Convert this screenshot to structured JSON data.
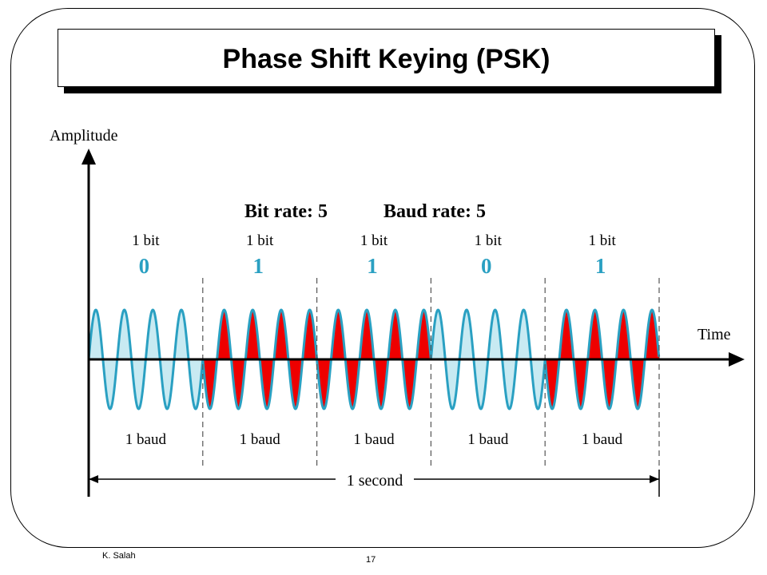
{
  "slide": {
    "title": "Phase Shift Keying (PSK)",
    "author": "K. Salah",
    "page_number": "17"
  },
  "diagram": {
    "y_axis_label": "Amplitude",
    "x_axis_label": "Time",
    "bit_rate_text": "Bit rate: 5",
    "baud_rate_text": "Baud rate: 5",
    "duration_label": "1 second",
    "bit_label": "1 bit",
    "baud_label": "1 baud",
    "bits": [
      "0",
      "1",
      "1",
      "0",
      "1"
    ],
    "cycles_per_baud": 4,
    "colors": {
      "wave": "#2aa0c2",
      "fill_phase_0": "#c8eaf2",
      "fill_phase_180": "#ee0000",
      "bit_digit": "#2aa0c2",
      "divider": "#555555"
    }
  }
}
